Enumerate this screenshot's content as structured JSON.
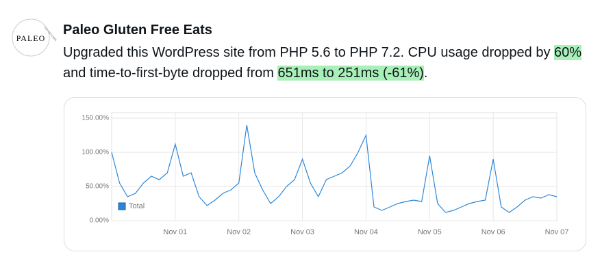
{
  "post": {
    "avatar": {
      "main": "PALEO",
      "arc": "GLUTEN FREE"
    },
    "author": "Paleo Gluten Free Eats",
    "text_parts": [
      "Upgraded this WordPress site from PHP 5.6 to PHP 7.2. CPU usage dropped by ",
      "60%",
      " and time-to-first-byte dropped from ",
      "651ms to 251ms (-61%)",
      "."
    ]
  },
  "chart_data": {
    "type": "line",
    "categories": [
      null,
      null,
      null,
      null,
      null,
      null,
      null,
      null,
      "Nov 01",
      null,
      null,
      null,
      null,
      null,
      null,
      null,
      "Nov 02",
      null,
      null,
      null,
      null,
      null,
      null,
      null,
      "Nov 03",
      null,
      null,
      null,
      null,
      null,
      null,
      null,
      "Nov 04",
      null,
      null,
      null,
      null,
      null,
      null,
      null,
      "Nov 05",
      null,
      null,
      null,
      null,
      null,
      null,
      null,
      "Nov 06",
      null,
      null,
      null,
      null,
      null,
      null,
      null,
      "Nov 07"
    ],
    "series": [
      {
        "name": "Total",
        "color": "#2b86d9",
        "values": [
          100,
          55,
          35,
          40,
          55,
          65,
          60,
          70,
          112,
          65,
          70,
          35,
          22,
          30,
          40,
          45,
          55,
          140,
          70,
          45,
          25,
          35,
          50,
          60,
          90,
          55,
          35,
          60,
          65,
          70,
          80,
          100,
          125,
          20,
          15,
          20,
          25,
          28,
          30,
          28,
          95,
          25,
          12,
          15,
          20,
          25,
          28,
          30,
          90,
          20,
          12,
          20,
          30,
          35,
          33,
          38,
          35
        ]
      }
    ],
    "ylim": [
      0,
      150
    ],
    "yticks": [
      {
        "value": 0,
        "label": "0.00%"
      },
      {
        "value": 50,
        "label": "50.00%"
      },
      {
        "value": 100,
        "label": "100.00%"
      },
      {
        "value": 150,
        "label": "150.00%"
      }
    ],
    "grid": true,
    "legend": "bottom-left"
  }
}
